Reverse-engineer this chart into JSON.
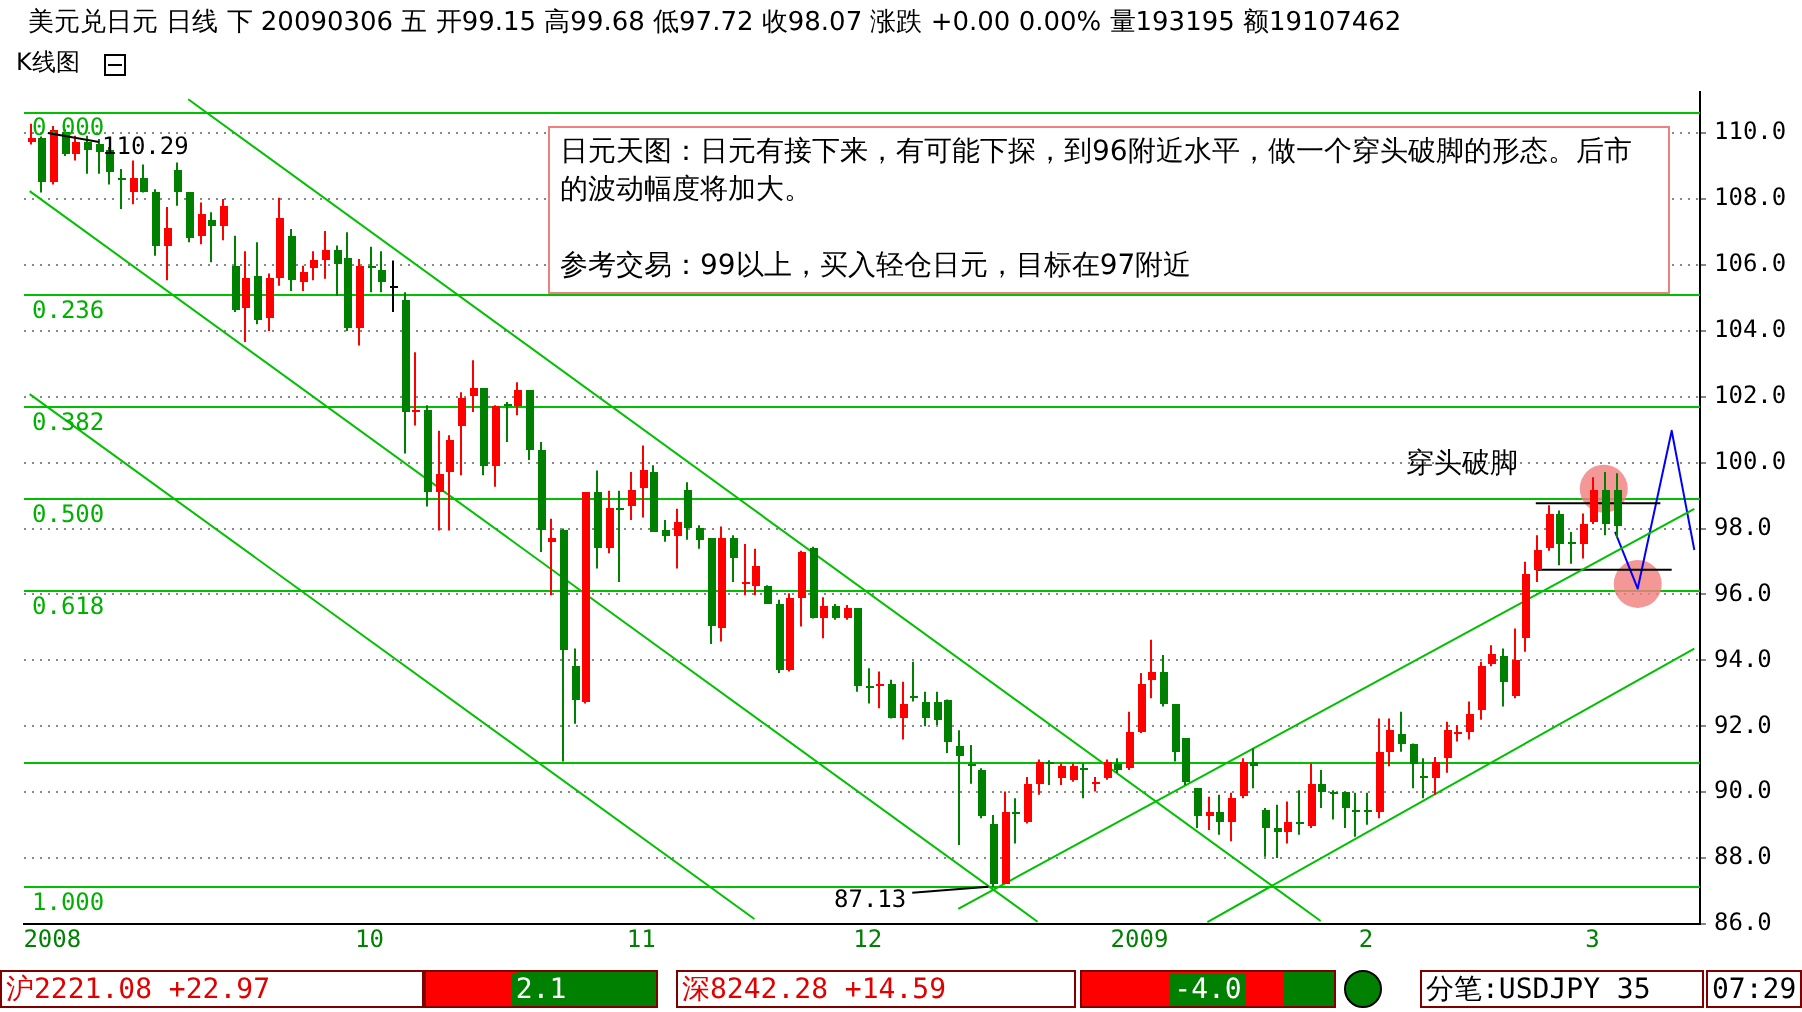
{
  "chart_data": {
    "type": "candlestick",
    "title": "美元兑日元 日线 下 20090306 五 开99.15 高99.68 低97.72 收98.07 涨跌 +0.00 0.00% 量193195 额19107462",
    "subtitle": "K线图",
    "categories": [
      null,
      null,
      "2008",
      null,
      null,
      null,
      null,
      null,
      null,
      null,
      null,
      null,
      null,
      null,
      null,
      null,
      null,
      null,
      null,
      null,
      null,
      null,
      null,
      null,
      null,
      null,
      null,
      null,
      null,
      null,
      "10",
      null,
      null,
      null,
      null,
      null,
      null,
      null,
      null,
      null,
      null,
      null,
      null,
      null,
      null,
      null,
      null,
      null,
      null,
      null,
      null,
      null,
      null,
      null,
      "11",
      null,
      null,
      null,
      null,
      null,
      null,
      null,
      null,
      null,
      null,
      null,
      null,
      null,
      null,
      null,
      null,
      null,
      null,
      null,
      "12",
      null,
      null,
      null,
      null,
      null,
      null,
      null,
      null,
      null,
      null,
      null,
      null,
      null,
      null,
      null,
      null,
      null,
      null,
      null,
      null,
      null,
      null,
      null,
      "2009",
      null,
      null,
      null,
      null,
      null,
      null,
      null,
      null,
      null,
      null,
      null,
      null,
      null,
      null,
      null,
      null,
      null,
      null,
      null,
      "2",
      null,
      null,
      null,
      null,
      null,
      null,
      null,
      null,
      null,
      null,
      null,
      null,
      null,
      null,
      null,
      null,
      null,
      null,
      null,
      "3",
      null,
      null,
      null,
      null,
      null,
      null,
      null,
      null,
      null
    ],
    "ohlc": [
      [
        109.72,
        110.29,
        109.66,
        109.86
      ],
      [
        109.86,
        109.9,
        108.2,
        108.5
      ],
      [
        108.5,
        110.22,
        108.44,
        110.12
      ],
      [
        110.06,
        110.12,
        109.31,
        109.37
      ],
      [
        109.37,
        109.92,
        109.17,
        109.72
      ],
      [
        109.72,
        109.92,
        108.77,
        109.52
      ],
      [
        109.66,
        109.82,
        108.77,
        109.45
      ],
      [
        109.52,
        109.58,
        108.44,
        108.81
      ],
      [
        108.65,
        108.91,
        107.7,
        108.61
      ],
      [
        108.2,
        109.17,
        107.84,
        108.61
      ],
      [
        108.61,
        109.05,
        108.2,
        108.24
      ],
      [
        108.24,
        108.3,
        106.28,
        106.59
      ],
      [
        106.55,
        107.76,
        105.54,
        107.15
      ],
      [
        108.91,
        109.11,
        107.8,
        108.24
      ],
      [
        108.2,
        108.2,
        106.69,
        106.83
      ],
      [
        106.89,
        107.9,
        106.63,
        107.55
      ],
      [
        107.35,
        107.6,
        106.08,
        107.19
      ],
      [
        107.19,
        108.0,
        106.75,
        107.8
      ],
      [
        105.94,
        106.89,
        104.57,
        104.61
      ],
      [
        104.67,
        106.42,
        103.66,
        105.62
      ],
      [
        105.68,
        106.69,
        104.2,
        104.36
      ],
      [
        104.4,
        105.74,
        104.0,
        105.58
      ],
      [
        105.58,
        108.04,
        105.37,
        107.43
      ],
      [
        106.89,
        107.09,
        105.21,
        105.54
      ],
      [
        105.47,
        105.98,
        105.21,
        105.78
      ],
      [
        105.88,
        106.42,
        105.54,
        106.18
      ],
      [
        106.18,
        107.03,
        105.58,
        106.46
      ],
      [
        106.48,
        106.59,
        105.07,
        106.02
      ],
      [
        106.22,
        106.99,
        104.0,
        104.06
      ],
      [
        104.06,
        106.18,
        103.56,
        105.98
      ],
      [
        105.98,
        106.55,
        105.17,
        105.88
      ],
      [
        105.82,
        106.42,
        105.17,
        105.47
      ],
      [
        105.38,
        106.14,
        104.57,
        105.38
      ],
      [
        104.93,
        105.17,
        100.28,
        101.54
      ],
      [
        101.56,
        103.35,
        101.13,
        101.6
      ],
      [
        101.6,
        101.74,
        98.67,
        99.11
      ],
      [
        99.11,
        100.97,
        97.94,
        99.68
      ],
      [
        99.72,
        100.83,
        97.94,
        100.66
      ],
      [
        101.13,
        102.14,
        99.62,
        101.98
      ],
      [
        102.04,
        103.11,
        101.54,
        102.24
      ],
      [
        102.24,
        102.24,
        99.62,
        99.88
      ],
      [
        99.92,
        101.74,
        99.27,
        101.74
      ],
      [
        101.78,
        101.84,
        100.63,
        101.7
      ],
      [
        101.7,
        102.44,
        101.44,
        102.18
      ],
      [
        102.18,
        102.18,
        100.08,
        100.36
      ],
      [
        100.36,
        100.63,
        97.29,
        97.94
      ],
      [
        97.6,
        98.3,
        95.98,
        97.7
      ],
      [
        97.94,
        98.0,
        90.93,
        94.3
      ],
      [
        93.86,
        94.36,
        92.08,
        92.81
      ],
      [
        92.75,
        99.11,
        92.69,
        99.11
      ],
      [
        99.11,
        99.76,
        96.79,
        97.39
      ],
      [
        97.39,
        99.15,
        97.25,
        98.6
      ],
      [
        98.65,
        99.15,
        96.38,
        98.55
      ],
      [
        98.71,
        99.72,
        98.26,
        99.15
      ],
      [
        99.21,
        100.52,
        98.34,
        99.76
      ],
      [
        99.72,
        99.92,
        97.9,
        97.9
      ],
      [
        97.94,
        98.26,
        97.6,
        97.8
      ],
      [
        97.8,
        98.6,
        96.79,
        98.2
      ],
      [
        99.15,
        99.41,
        97.66,
        98.0
      ],
      [
        98.0,
        98.1,
        97.39,
        97.66
      ],
      [
        97.7,
        97.7,
        94.5,
        95.03
      ],
      [
        94.97,
        98.06,
        94.57,
        97.7
      ],
      [
        97.74,
        97.8,
        96.38,
        97.13
      ],
      [
        96.32,
        97.53,
        95.98,
        96.4
      ],
      [
        96.28,
        97.39,
        95.98,
        96.89
      ],
      [
        96.24,
        96.28,
        95.71,
        95.71
      ],
      [
        95.71,
        95.84,
        93.62,
        93.7
      ],
      [
        93.7,
        96.04,
        93.66,
        95.92
      ],
      [
        95.92,
        97.33,
        95.03,
        97.29
      ],
      [
        97.39,
        97.45,
        95.27,
        95.31
      ],
      [
        95.27,
        95.92,
        94.67,
        95.64
      ],
      [
        95.64,
        95.71,
        95.23,
        95.31
      ],
      [
        95.27,
        95.68,
        95.23,
        95.58
      ],
      [
        95.58,
        95.58,
        93.05,
        93.21
      ],
      [
        93.25,
        93.76,
        92.69,
        93.19
      ],
      [
        93.21,
        93.66,
        92.55,
        93.29
      ],
      [
        93.29,
        93.41,
        92.24,
        92.28
      ],
      [
        92.28,
        93.35,
        91.6,
        92.65
      ],
      [
        92.89,
        93.96,
        92.75,
        92.85
      ],
      [
        92.75,
        93.05,
        92.0,
        92.24
      ],
      [
        92.75,
        93.05,
        92.04,
        92.2
      ],
      [
        92.81,
        92.81,
        91.19,
        91.54
      ],
      [
        91.43,
        91.88,
        88.4,
        91.07
      ],
      [
        90.87,
        91.43,
        90.26,
        90.83
      ],
      [
        90.67,
        90.73,
        89.21,
        89.25
      ],
      [
        89.05,
        89.31,
        87.13,
        87.23
      ],
      [
        87.23,
        90.02,
        87.23,
        89.37
      ],
      [
        89.41,
        89.82,
        88.44,
        89.37
      ],
      [
        89.11,
        90.46,
        89.05,
        90.26
      ],
      [
        90.26,
        90.99,
        89.92,
        90.93
      ],
      [
        90.93,
        90.97,
        90.22,
        90.83
      ],
      [
        90.46,
        90.87,
        90.22,
        90.79
      ],
      [
        90.38,
        90.87,
        90.32,
        90.79
      ],
      [
        90.71,
        90.87,
        89.82,
        90.65
      ],
      [
        90.26,
        90.46,
        90.02,
        90.32
      ],
      [
        90.42,
        90.99,
        90.38,
        90.93
      ],
      [
        90.87,
        91.03,
        90.58,
        90.67
      ],
      [
        90.73,
        92.44,
        90.67,
        91.84
      ],
      [
        91.84,
        93.62,
        91.8,
        93.29
      ],
      [
        93.41,
        94.63,
        92.85,
        93.66
      ],
      [
        93.66,
        94.16,
        92.6,
        92.65
      ],
      [
        92.65,
        92.65,
        90.93,
        91.23
      ],
      [
        91.64,
        91.64,
        90.22,
        90.32
      ],
      [
        90.12,
        90.12,
        88.91,
        89.25
      ],
      [
        89.25,
        89.86,
        88.85,
        89.41
      ],
      [
        89.41,
        89.92,
        88.71,
        89.11
      ],
      [
        89.11,
        89.98,
        88.51,
        89.82
      ],
      [
        89.86,
        91.03,
        89.82,
        90.93
      ],
      [
        90.93,
        91.33,
        90.12,
        90.79
      ],
      [
        89.45,
        89.52,
        88.04,
        88.91
      ],
      [
        88.91,
        89.62,
        88.0,
        88.81
      ],
      [
        88.77,
        89.72,
        88.44,
        89.11
      ],
      [
        89.11,
        90.06,
        88.71,
        89.05
      ],
      [
        88.97,
        90.87,
        88.91,
        90.26
      ],
      [
        90.26,
        90.67,
        89.52,
        90.02
      ],
      [
        90.02,
        90.06,
        89.17,
        89.98
      ],
      [
        89.98,
        90.02,
        88.91,
        89.52
      ],
      [
        89.45,
        89.98,
        88.65,
        89.41
      ],
      [
        89.45,
        89.98,
        89.01,
        89.41
      ],
      [
        89.41,
        92.24,
        89.21,
        91.19
      ],
      [
        91.23,
        92.24,
        90.79,
        91.88
      ],
      [
        91.74,
        92.44,
        91.23,
        91.48
      ],
      [
        91.48,
        91.48,
        90.12,
        90.83
      ],
      [
        90.48,
        91.03,
        89.82,
        90.42
      ],
      [
        90.46,
        91.07,
        89.92,
        90.93
      ],
      [
        91.03,
        92.14,
        90.59,
        91.88
      ],
      [
        91.74,
        92.04,
        91.54,
        91.8
      ],
      [
        91.84,
        92.75,
        91.6,
        92.4
      ],
      [
        92.48,
        93.96,
        92.2,
        93.86
      ],
      [
        93.9,
        94.46,
        93.82,
        94.2
      ],
      [
        94.16,
        94.36,
        92.6,
        93.35
      ],
      [
        92.89,
        94.97,
        92.85,
        94.02
      ],
      [
        94.67,
        96.99,
        94.26,
        96.65
      ],
      [
        96.73,
        97.8,
        96.38,
        97.33
      ],
      [
        97.39,
        98.71,
        97.33,
        98.46
      ],
      [
        98.46,
        98.55,
        96.89,
        97.53
      ],
      [
        97.6,
        97.9,
        96.93,
        97.53
      ],
      [
        97.53,
        98.46,
        97.09,
        98.14
      ],
      [
        98.2,
        99.56,
        98.14,
        99.15
      ],
      [
        99.15,
        99.72,
        97.8,
        98.14
      ],
      [
        99.15,
        99.68,
        97.72,
        98.07
      ],
      null,
      null,
      null,
      null,
      null,
      null,
      null
    ],
    "colors": [
      "#ff0000",
      "#008000",
      "#ff0000",
      "#008000",
      "#ff0000",
      "#008000",
      "#008000",
      "#008000",
      "#008000",
      "#ff0000",
      "#008000",
      "#008000",
      "#ff0000",
      "#008000",
      "#008000",
      "#ff0000",
      "#008000",
      "#ff0000",
      "#008000",
      "#ff0000",
      "#008000",
      "#ff0000",
      "#ff0000",
      "#008000",
      "#ff0000",
      "#ff0000",
      "#ff0000",
      "#008000",
      "#008000",
      "#ff0000",
      "#008000",
      "#008000",
      "#000000",
      "#008000",
      "#ff0000",
      "#008000",
      "#ff0000",
      "#ff0000",
      "#ff0000",
      "#ff0000",
      "#008000",
      "#ff0000",
      "#008000",
      "#ff0000",
      "#008000",
      "#008000",
      "#ff0000",
      "#008000",
      "#008000",
      "#ff0000",
      "#008000",
      "#ff0000",
      "#008000",
      "#ff0000",
      "#ff0000",
      "#008000",
      "#008000",
      "#ff0000",
      "#008000",
      "#008000",
      "#008000",
      "#ff0000",
      "#008000",
      "#ff0000",
      "#ff0000",
      "#008000",
      "#008000",
      "#ff0000",
      "#ff0000",
      "#008000",
      "#ff0000",
      "#008000",
      "#ff0000",
      "#008000",
      "#008000",
      "#ff0000",
      "#008000",
      "#ff0000",
      "#008000",
      "#008000",
      "#008000",
      "#008000",
      "#008000",
      "#008000",
      "#008000",
      "#008000",
      "#ff0000",
      "#008000",
      "#ff0000",
      "#ff0000",
      "#008000",
      "#ff0000",
      "#ff0000",
      "#008000",
      "#ff0000",
      "#ff0000",
      "#008000",
      "#ff0000",
      "#ff0000",
      "#ff0000",
      "#008000",
      "#008000",
      "#008000",
      "#008000",
      "#ff0000",
      "#008000",
      "#ff0000",
      "#ff0000",
      "#008000",
      "#008000",
      "#008000",
      "#ff0000",
      "#008000",
      "#ff0000",
      "#008000",
      "#008000",
      "#008000",
      "#008000",
      "#008000",
      "#ff0000",
      "#ff0000",
      "#008000",
      "#008000",
      "#008000",
      "#ff0000",
      "#ff0000",
      "#ff0000",
      "#ff0000",
      "#ff0000",
      "#ff0000",
      "#008000",
      "#ff0000",
      "#ff0000",
      "#ff0000",
      "#ff0000",
      "#008000",
      "#008000",
      "#ff0000",
      "#ff0000",
      "#008000",
      "#008000",
      null,
      null,
      null,
      null,
      null,
      null,
      null
    ],
    "ylim": [
      86.0,
      111.25
    ],
    "yticks": [
      {
        "value": 86,
        "label": "86.0"
      },
      {
        "value": 88,
        "label": "88.0"
      },
      {
        "value": 90,
        "label": "90.0"
      },
      {
        "value": 92,
        "label": "92.0"
      },
      {
        "value": 94,
        "label": "94.0"
      },
      {
        "value": 96,
        "label": "96.0"
      },
      {
        "value": 98,
        "label": "98.0"
      },
      {
        "value": 100,
        "label": "100.0"
      },
      {
        "value": 102,
        "label": "102.0"
      },
      {
        "value": 104,
        "label": "104.0"
      },
      {
        "value": 106,
        "label": "106.0"
      },
      {
        "value": 108,
        "label": "108.0"
      },
      {
        "value": 110,
        "label": "110.0"
      }
    ],
    "grid": "y",
    "series": [
      {
        "type": "line",
        "color": "#00c000",
        "values": [
          null,
          null,
          null,
          null,
          null,
          null,
          null,
          null,
          null,
          null,
          null,
          null,
          null,
          null,
          111.03,
          null,
          null,
          null,
          null,
          null,
          null,
          null,
          null,
          null,
          null,
          null,
          null,
          null,
          null,
          null,
          null,
          null,
          null,
          null,
          null,
          null,
          null,
          null,
          null,
          null,
          null,
          null,
          null,
          null,
          null,
          null,
          null,
          null,
          null,
          null,
          null,
          null,
          null,
          null,
          null,
          null,
          null,
          null,
          null,
          null,
          null,
          null,
          null,
          null,
          null,
          null,
          null,
          null,
          null,
          null,
          null,
          null,
          null,
          null,
          null,
          null,
          null,
          null,
          null,
          null,
          null,
          null,
          null,
          null,
          null,
          null,
          null,
          null,
          null,
          null,
          null,
          null,
          null,
          null,
          null,
          null,
          null,
          null,
          null,
          null,
          null,
          null,
          null,
          null,
          null,
          null,
          null,
          null,
          null,
          null,
          null,
          null,
          null,
          null,
          86.09,
          null,
          null,
          null,
          null,
          null,
          null,
          null,
          null,
          null,
          null,
          null,
          null,
          null,
          null,
          null,
          null,
          null,
          null,
          null,
          null,
          null,
          null,
          null,
          null,
          null,
          null,
          null,
          null,
          null,
          null,
          null,
          null,
          null
        ]
      },
      {
        "type": "line",
        "color": "#00c000",
        "values": [
          108.24,
          null,
          null,
          null,
          null,
          null,
          null,
          null,
          null,
          null,
          null,
          null,
          null,
          null,
          null,
          null,
          null,
          null,
          null,
          null,
          null,
          null,
          null,
          null,
          null,
          null,
          null,
          null,
          null,
          null,
          null,
          null,
          null,
          null,
          null,
          null,
          null,
          null,
          null,
          null,
          null,
          null,
          null,
          null,
          null,
          null,
          null,
          null,
          null,
          null,
          null,
          null,
          null,
          null,
          null,
          null,
          null,
          null,
          null,
          null,
          null,
          null,
          null,
          null,
          null,
          null,
          null,
          null,
          null,
          null,
          null,
          null,
          null,
          null,
          null,
          null,
          null,
          null,
          null,
          null,
          null,
          null,
          null,
          null,
          null,
          null,
          null,
          null,
          null,
          86.07,
          null,
          null,
          null,
          null,
          null,
          null,
          null,
          null,
          null,
          null,
          null,
          null,
          null,
          null,
          null,
          null,
          null,
          null,
          null,
          null,
          null,
          null,
          null,
          null,
          null,
          null,
          null,
          null,
          null,
          null,
          null,
          null,
          null,
          null,
          null,
          null,
          null,
          null,
          null,
          null,
          null,
          null,
          null,
          null,
          null,
          null,
          null,
          null,
          null,
          null,
          null,
          null,
          null,
          null,
          null,
          null,
          null,
          null
        ]
      },
      {
        "type": "line",
        "color": "#00c000",
        "values": [
          102.08,
          null,
          null,
          null,
          null,
          null,
          null,
          null,
          null,
          null,
          null,
          null,
          null,
          null,
          null,
          null,
          null,
          null,
          null,
          null,
          null,
          null,
          null,
          null,
          null,
          null,
          null,
          null,
          null,
          null,
          null,
          null,
          null,
          null,
          null,
          null,
          null,
          null,
          null,
          null,
          null,
          null,
          null,
          null,
          null,
          null,
          null,
          null,
          null,
          null,
          null,
          null,
          null,
          null,
          null,
          null,
          null,
          null,
          null,
          null,
          null,
          null,
          null,
          null,
          86.15,
          null,
          null,
          null,
          null,
          null,
          null,
          null,
          null,
          null,
          null,
          null,
          null,
          null,
          null,
          null,
          null,
          null,
          null,
          null,
          null,
          null,
          null,
          null,
          null,
          null,
          null,
          null,
          null,
          null,
          null,
          null,
          null,
          null,
          null,
          null,
          null,
          null,
          null,
          null,
          null,
          null,
          null,
          null,
          null,
          null,
          null,
          null,
          null,
          null,
          null,
          null,
          null,
          null,
          null,
          null,
          null,
          null,
          null,
          null,
          null,
          null,
          null,
          null,
          null,
          null,
          null,
          null,
          null,
          null,
          null,
          null,
          null,
          null,
          null,
          null,
          null,
          null,
          null,
          null,
          null,
          null,
          null,
          null
        ]
      },
      {
        "type": "line",
        "color": "#00c000",
        "values": [
          null,
          null,
          null,
          null,
          null,
          null,
          null,
          null,
          null,
          null,
          null,
          null,
          null,
          null,
          null,
          null,
          null,
          null,
          null,
          null,
          null,
          null,
          null,
          null,
          null,
          null,
          null,
          null,
          null,
          null,
          null,
          null,
          null,
          null,
          null,
          null,
          null,
          null,
          null,
          null,
          null,
          null,
          null,
          null,
          null,
          null,
          null,
          null,
          null,
          null,
          null,
          null,
          null,
          null,
          null,
          null,
          null,
          null,
          null,
          null,
          null,
          null,
          null,
          null,
          null,
          null,
          null,
          null,
          null,
          null,
          null,
          null,
          null,
          null,
          null,
          null,
          null,
          null,
          null,
          null,
          null,
          null,
          86.46,
          null,
          null,
          null,
          null,
          null,
          null,
          null,
          null,
          null,
          null,
          null,
          null,
          null,
          null,
          null,
          null,
          null,
          null,
          null,
          null,
          null,
          null,
          null,
          null,
          null,
          null,
          null,
          null,
          null,
          null,
          null,
          null,
          null,
          null,
          null,
          null,
          null,
          null,
          null,
          null,
          null,
          null,
          null,
          null,
          null,
          null,
          null,
          null,
          null,
          null,
          null,
          null,
          null,
          null,
          null,
          null,
          null,
          null,
          null,
          null,
          null,
          null,
          null,
          null,
          98.6
        ]
      },
      {
        "type": "line",
        "color": "#00c000",
        "values": [
          null,
          null,
          null,
          null,
          null,
          null,
          null,
          null,
          null,
          null,
          null,
          null,
          null,
          null,
          null,
          null,
          null,
          null,
          null,
          null,
          null,
          null,
          null,
          null,
          null,
          null,
          null,
          null,
          null,
          null,
          null,
          null,
          null,
          null,
          null,
          null,
          null,
          null,
          null,
          null,
          null,
          null,
          null,
          null,
          null,
          null,
          null,
          null,
          null,
          null,
          null,
          null,
          null,
          null,
          null,
          null,
          null,
          null,
          null,
          null,
          null,
          null,
          null,
          null,
          null,
          null,
          null,
          null,
          null,
          null,
          null,
          null,
          null,
          null,
          null,
          null,
          null,
          null,
          null,
          null,
          null,
          null,
          null,
          null,
          null,
          null,
          null,
          null,
          null,
          null,
          null,
          null,
          null,
          null,
          null,
          null,
          null,
          null,
          null,
          null,
          null,
          null,
          null,
          null,
          86.06,
          null,
          null,
          null,
          null,
          null,
          null,
          null,
          null,
          null,
          null,
          null,
          null,
          null,
          null,
          null,
          null,
          null,
          null,
          null,
          null,
          null,
          null,
          null,
          null,
          null,
          null,
          null,
          null,
          null,
          null,
          null,
          null,
          null,
          null,
          null,
          null,
          null,
          null,
          null,
          null,
          null,
          null,
          94.36
        ]
      },
      {
        "type": "line",
        "color": "#000000",
        "values": [
          null,
          null,
          null,
          null,
          null,
          null,
          null,
          null,
          null,
          null,
          null,
          null,
          null,
          null,
          null,
          null,
          null,
          null,
          null,
          null,
          null,
          null,
          null,
          null,
          null,
          null,
          null,
          null,
          null,
          null,
          null,
          null,
          null,
          null,
          null,
          null,
          null,
          null,
          null,
          null,
          null,
          null,
          null,
          null,
          null,
          null,
          null,
          null,
          null,
          null,
          null,
          null,
          null,
          null,
          null,
          null,
          null,
          null,
          null,
          null,
          null,
          null,
          null,
          null,
          null,
          null,
          null,
          null,
          null,
          null,
          null,
          null,
          null,
          null,
          null,
          null,
          null,
          null,
          null,
          null,
          null,
          null,
          null,
          null,
          null,
          null,
          null,
          null,
          null,
          null,
          null,
          null,
          null,
          null,
          null,
          null,
          null,
          null,
          null,
          null,
          null,
          null,
          null,
          null,
          null,
          null,
          null,
          null,
          null,
          null,
          null,
          null,
          null,
          null,
          null,
          null,
          null,
          null,
          null,
          null,
          null,
          null,
          null,
          null,
          null,
          null,
          null,
          null,
          null,
          null,
          null,
          null,
          null,
          98.77,
          null,
          null,
          null,
          null,
          null,
          null,
          null,
          null,
          null,
          null,
          98.77,
          null,
          null,
          null
        ]
      },
      {
        "type": "line",
        "color": "#000000",
        "values": [
          null,
          null,
          null,
          null,
          null,
          null,
          null,
          null,
          null,
          null,
          null,
          null,
          null,
          null,
          null,
          null,
          null,
          null,
          null,
          null,
          null,
          null,
          null,
          null,
          null,
          null,
          null,
          null,
          null,
          null,
          null,
          null,
          null,
          null,
          null,
          null,
          null,
          null,
          null,
          null,
          null,
          null,
          null,
          null,
          null,
          null,
          null,
          null,
          null,
          null,
          null,
          null,
          null,
          null,
          null,
          null,
          null,
          null,
          null,
          null,
          null,
          null,
          null,
          null,
          null,
          null,
          null,
          null,
          null,
          null,
          null,
          null,
          null,
          null,
          null,
          null,
          null,
          null,
          null,
          null,
          null,
          null,
          null,
          null,
          null,
          null,
          null,
          null,
          null,
          null,
          null,
          null,
          null,
          null,
          null,
          null,
          null,
          null,
          null,
          null,
          null,
          null,
          null,
          null,
          null,
          null,
          null,
          null,
          null,
          null,
          null,
          null,
          null,
          null,
          null,
          null,
          null,
          null,
          null,
          null,
          null,
          null,
          null,
          null,
          null,
          null,
          null,
          null,
          null,
          null,
          null,
          null,
          null,
          96.75,
          null,
          null,
          null,
          null,
          null,
          null,
          null,
          null,
          null,
          null,
          null,
          96.75,
          null,
          null
        ]
      },
      {
        "type": "line",
        "color": "#0000ff",
        "values": [
          null,
          null,
          null,
          null,
          null,
          null,
          null,
          null,
          null,
          null,
          null,
          null,
          null,
          null,
          null,
          null,
          null,
          null,
          null,
          null,
          null,
          null,
          null,
          null,
          null,
          null,
          null,
          null,
          null,
          null,
          null,
          null,
          null,
          null,
          null,
          null,
          null,
          null,
          null,
          null,
          null,
          null,
          null,
          null,
          null,
          null,
          null,
          null,
          null,
          null,
          null,
          null,
          null,
          null,
          null,
          null,
          null,
          null,
          null,
          null,
          null,
          null,
          null,
          null,
          null,
          null,
          null,
          null,
          null,
          null,
          null,
          null,
          null,
          null,
          null,
          null,
          null,
          null,
          null,
          null,
          null,
          null,
          null,
          null,
          null,
          null,
          null,
          null,
          null,
          null,
          null,
          null,
          null,
          null,
          null,
          null,
          null,
          null,
          null,
          null,
          null,
          null,
          null,
          null,
          null,
          null,
          null,
          null,
          null,
          null,
          null,
          null,
          null,
          null,
          null,
          null,
          null,
          null,
          null,
          null,
          null,
          null,
          null,
          null,
          null,
          null,
          null,
          null,
          null,
          null,
          null,
          null,
          null,
          null,
          null,
          null,
          null,
          null,
          null,
          null,
          97.9,
          null,
          96.18,
          null,
          null,
          100.97,
          null,
          97.35
        ]
      },
      {
        "type": "scatter",
        "color": "#f08080",
        "marker": "circle",
        "values": [
          null,
          null,
          null,
          null,
          null,
          null,
          null,
          null,
          null,
          null,
          null,
          null,
          null,
          null,
          null,
          null,
          null,
          null,
          null,
          null,
          null,
          null,
          null,
          null,
          null,
          null,
          null,
          null,
          null,
          null,
          null,
          null,
          null,
          null,
          null,
          null,
          null,
          null,
          null,
          null,
          null,
          null,
          null,
          null,
          null,
          null,
          null,
          null,
          null,
          null,
          null,
          null,
          null,
          null,
          null,
          null,
          null,
          null,
          null,
          null,
          null,
          null,
          null,
          null,
          null,
          null,
          null,
          null,
          null,
          null,
          null,
          null,
          null,
          null,
          null,
          null,
          null,
          null,
          null,
          null,
          null,
          null,
          null,
          null,
          null,
          null,
          null,
          null,
          null,
          null,
          null,
          null,
          null,
          null,
          null,
          null,
          null,
          null,
          null,
          null,
          null,
          null,
          null,
          null,
          null,
          null,
          null,
          null,
          null,
          null,
          null,
          null,
          null,
          null,
          null,
          null,
          null,
          null,
          null,
          null,
          null,
          null,
          null,
          null,
          null,
          null,
          null,
          null,
          null,
          null,
          null,
          null,
          null,
          null,
          null,
          null,
          null,
          null,
          null,
          99.21,
          null,
          null,
          96.32,
          null,
          null,
          null,
          null,
          null
        ]
      }
    ],
    "ref_lines": [
      {
        "axis": "y",
        "value": 110.67,
        "color": "#00c000"
      },
      {
        "axis": "y",
        "value": 105.13,
        "color": "#00c000"
      },
      {
        "axis": "y",
        "value": 101.73,
        "color": "#00c000"
      },
      {
        "axis": "y",
        "value": 98.95,
        "color": "#00c000"
      },
      {
        "axis": "y",
        "value": 96.14,
        "color": "#00c000"
      },
      {
        "axis": "y",
        "value": 90.89,
        "color": "#00c000"
      },
      {
        "axis": "y",
        "value": 87.16,
        "color": "#00c000"
      }
    ],
    "annotations": [
      "日元天图：日元有接下来，有可能下探，到96附近水平，做一个穿头破脚的形态。后市的波动幅度将加大。",
      "参考交易：99以上，买入轻仓日元，目标在97附近",
      "穿头破脚",
      "沪2221.08 +22.97",
      "2.1",
      "深8242.28 +14.59",
      "-4.0",
      "分笔:USDJPY 35",
      "07:29",
      "110.29",
      {
        "text": "87.13",
        "y": 87.13
      },
      {
        "text": "0.000",
        "y": 110.67
      },
      {
        "text": "0.236",
        "y": 105.13
      },
      {
        "text": "0.382",
        "y": 101.73
      },
      {
        "text": "0.500",
        "y": 98.95
      },
      {
        "text": "0.618",
        "y": 96.14
      },
      {
        "text": "1.000",
        "y": 87.16
      }
    ]
  }
}
